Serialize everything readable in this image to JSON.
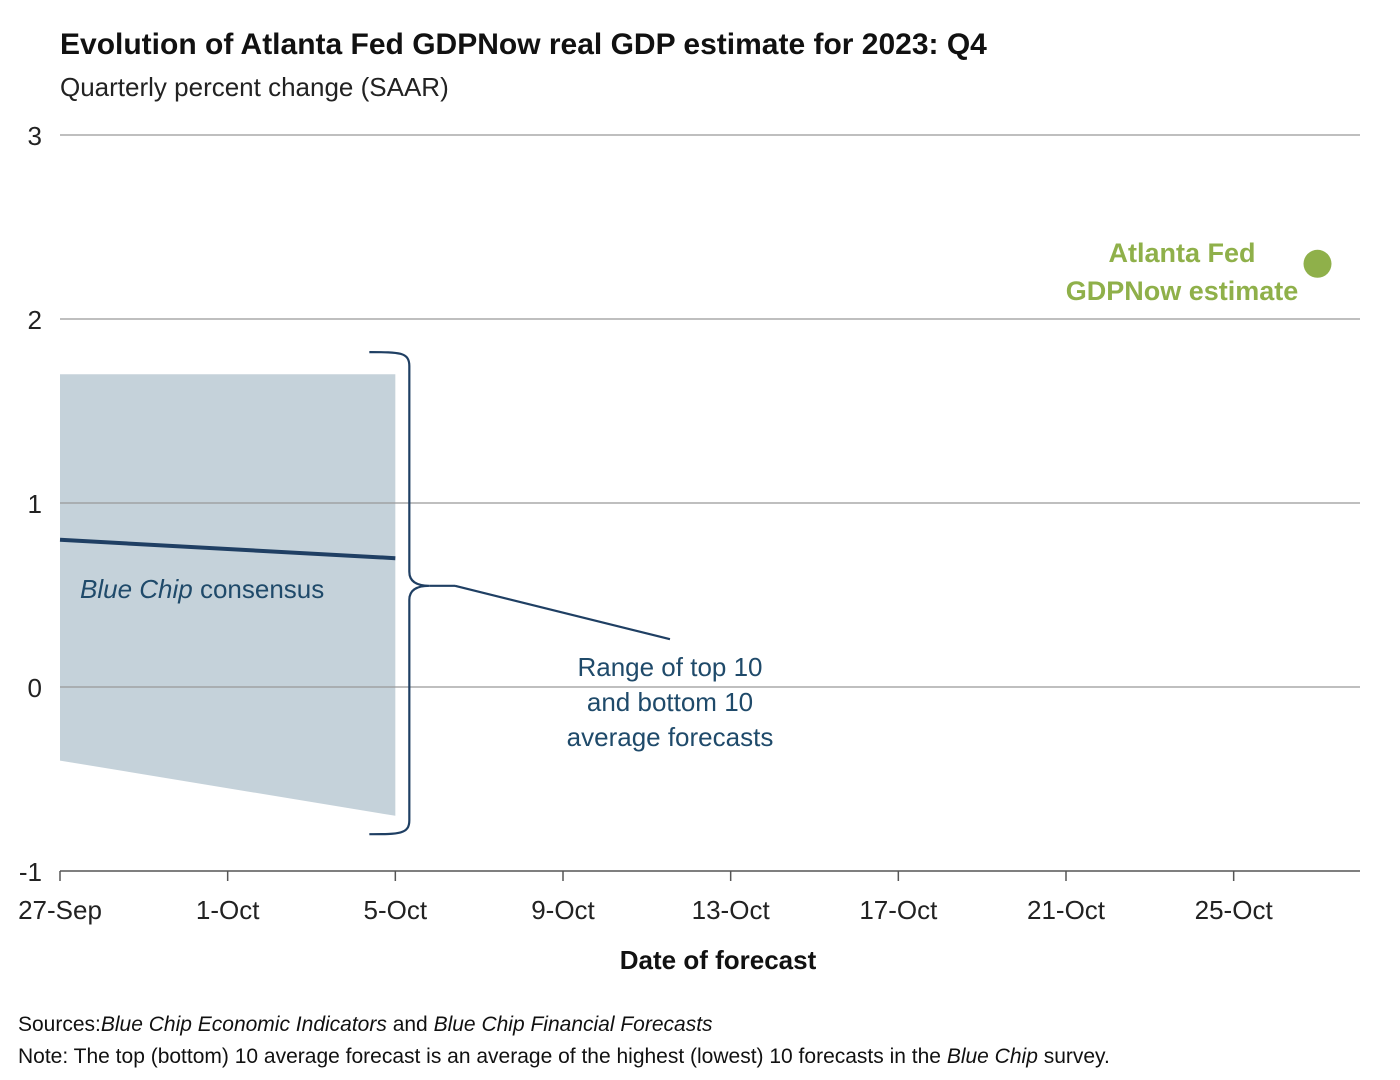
{
  "chart_data": {
    "type": "line",
    "title": "Evolution of Atlanta Fed GDPNow real GDP estimate for 2023: Q4",
    "subtitle": "Quarterly percent change (SAAR)",
    "xlabel": "Date of forecast",
    "ylabel": "",
    "ylim": [
      -1,
      3
    ],
    "yticks": [
      -1,
      0,
      1,
      2,
      3
    ],
    "xticks": [
      "27-Sep",
      "1-Oct",
      "5-Oct",
      "9-Oct",
      "13-Oct",
      "17-Oct",
      "21-Oct",
      "25-Oct"
    ],
    "grid": true,
    "range_band": {
      "label": "Range of top 10 and bottom 10 average forecasts",
      "label_lines": [
        "Range of top 10",
        "and bottom 10",
        "average forecasts"
      ],
      "points": [
        {
          "x": "27-Sep",
          "high": 1.7,
          "low": -0.4
        },
        {
          "x": "5-Oct",
          "high": 1.7,
          "low": -0.7
        }
      ]
    },
    "series": [
      {
        "name": "Blue Chip consensus",
        "name_italic": "Blue Chip",
        "name_rest": " consensus",
        "color": "#1f3f63",
        "points": [
          {
            "x": "27-Sep",
            "y": 0.8
          },
          {
            "x": "5-Oct",
            "y": 0.7
          }
        ]
      },
      {
        "name": "Atlanta Fed GDPNow estimate",
        "label_lines": [
          "Atlanta Fed",
          "GDPNow estimate"
        ],
        "color": "#8fb04a",
        "points": [
          {
            "x": "27-Oct",
            "y": 2.3
          }
        ]
      }
    ]
  },
  "footer": {
    "sources_label": "Sources:",
    "sources_part1": "Blue Chip Economic Indicators",
    "sources_and": " and ",
    "sources_part2": "Blue Chip Financial Forecasts",
    "note_label": "Note:",
    "note_text": " The top (bottom) 10 average forecast is an average of the highest (lowest) 10 forecasts in the ",
    "note_italic": "Blue Chip",
    "note_end": " survey."
  },
  "colors": {
    "band": "#c5d2da",
    "consensus": "#1f3f63",
    "gdpnow": "#8fb04a",
    "bracket": "#1f3f63",
    "annotation_text": "#1f4a6a",
    "grid": "#999999"
  }
}
